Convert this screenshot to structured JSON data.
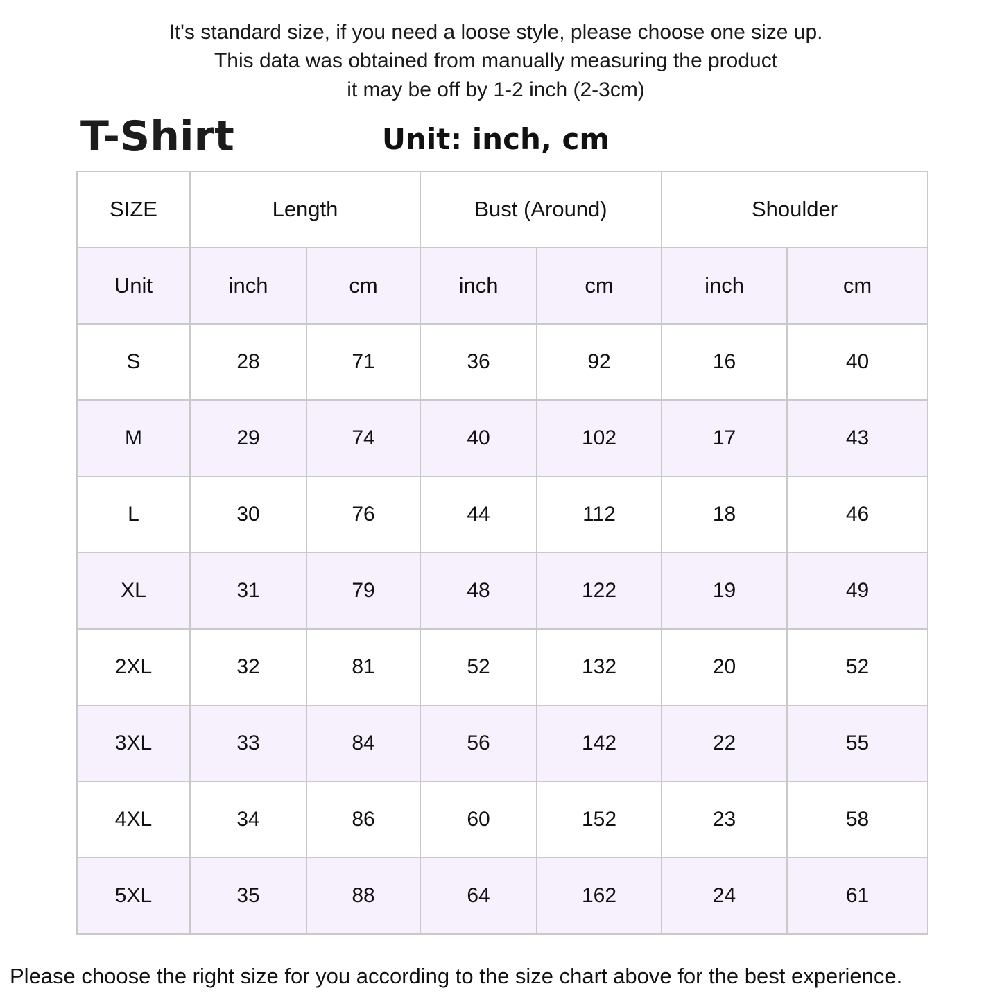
{
  "notes": [
    "It's standard size, if you need a loose style, please choose one size up.",
    "This data was obtained from manually measuring the product",
    "it may be off by 1-2 inch (2-3cm)"
  ],
  "title": "T-Shirt",
  "unit_label": "Unit: inch, cm",
  "table": {
    "size_header": "SIZE",
    "groups": [
      "Length",
      "Bust (Around)",
      "Shoulder"
    ],
    "unit_header": "Unit",
    "units": [
      "inch",
      "cm",
      "inch",
      "cm",
      "inch",
      "cm"
    ],
    "rows": [
      {
        "size": "S",
        "values": [
          "28",
          "71",
          "36",
          "92",
          "16",
          "40"
        ]
      },
      {
        "size": "M",
        "values": [
          "29",
          "74",
          "40",
          "102",
          "17",
          "43"
        ]
      },
      {
        "size": "L",
        "values": [
          "30",
          "76",
          "44",
          "112",
          "18",
          "46"
        ]
      },
      {
        "size": "XL",
        "values": [
          "31",
          "79",
          "48",
          "122",
          "19",
          "49"
        ]
      },
      {
        "size": "2XL",
        "values": [
          "32",
          "81",
          "52",
          "132",
          "20",
          "52"
        ]
      },
      {
        "size": "3XL",
        "values": [
          "33",
          "84",
          "56",
          "142",
          "22",
          "55"
        ]
      },
      {
        "size": "4XL",
        "values": [
          "34",
          "86",
          "60",
          "152",
          "23",
          "58"
        ]
      },
      {
        "size": "5XL",
        "values": [
          "35",
          "88",
          "64",
          "162",
          "24",
          "61"
        ]
      }
    ]
  },
  "footer": "Please choose the right size for you according to the size chart above for the best experience.",
  "colors": {
    "alt_row": "#f6f1fd",
    "border": "#c9c9c9"
  }
}
